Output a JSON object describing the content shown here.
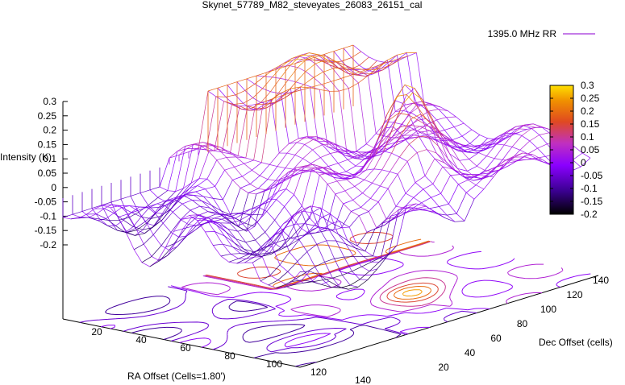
{
  "chart_data": {
    "type": "surface3d",
    "title": "Skynet_57789_M82_steveyates_26083_26151_cal",
    "xlabel": "RA Offset (Cells=1.80')",
    "ylabel": "Dec Offset (cells)",
    "zlabel": "Intensity (K)",
    "x_ticks": [
      "20",
      "40",
      "60",
      "80",
      "100",
      "120",
      "140"
    ],
    "y_ticks": [
      "20",
      "40",
      "60",
      "80",
      "100",
      "120",
      "140"
    ],
    "z_ticks": [
      "0.3",
      "0.25",
      "0.2",
      "0.15",
      "0.1",
      "0.05",
      "0",
      "-0.05",
      "-0.1",
      "-0.15",
      "-0.2"
    ],
    "colorbar_ticks": [
      "0.3",
      "0.25",
      "0.2",
      "0.15",
      "0.1",
      "0.05",
      "0",
      "-0.05",
      "-0.1",
      "-0.15",
      "-0.2"
    ],
    "zlim": [
      -0.2,
      0.3
    ],
    "xlim": [
      0,
      150
    ],
    "ylim": [
      0,
      150
    ],
    "legend": {
      "position": "top-right",
      "entries": [
        {
          "name": "1395.0 MHz RR",
          "color": "#a040f0"
        }
      ]
    },
    "palette": [
      "#000000",
      "#7700ff",
      "#c030d0",
      "#e05020",
      "#f0a000",
      "#ffe000"
    ],
    "peak": {
      "x": 100,
      "y": 95,
      "z": 0.3
    },
    "contours": "base-plane contour lines of intensity",
    "grid": false
  }
}
